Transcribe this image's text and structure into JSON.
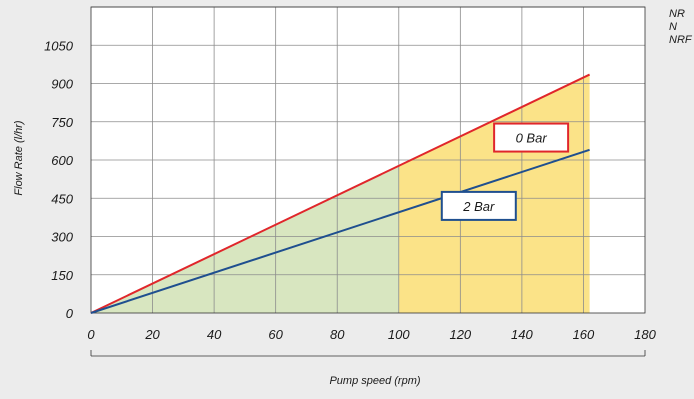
{
  "chart_data": {
    "type": "line",
    "xlabel": "Pump speed (rpm)",
    "ylabel": "Flow Rate (l/hr)",
    "xlim": [
      0,
      180
    ],
    "ylim": [
      0,
      1050
    ],
    "x_ticks": [
      0,
      20,
      40,
      60,
      80,
      100,
      120,
      140,
      160,
      180
    ],
    "y_ticks": [
      0,
      150,
      300,
      450,
      600,
      750,
      900,
      1050
    ],
    "grid": true,
    "series": [
      {
        "name": "0 Bar",
        "color": "#e0262b",
        "x": [
          0,
          162
        ],
        "y": [
          0,
          935
        ]
      },
      {
        "name": "2 Bar",
        "color": "#1f4f8f",
        "x": [
          0,
          162
        ],
        "y": [
          0,
          640
        ]
      }
    ],
    "shaded_regions": [
      {
        "x_range": [
          0,
          100
        ],
        "color": "#d8e6c0",
        "upper_series": "0 Bar"
      },
      {
        "x_range": [
          100,
          162
        ],
        "color": "#fbe388",
        "upper_series": "0 Bar"
      }
    ],
    "corner_labels": [
      "NR",
      "N",
      "NRF"
    ]
  }
}
